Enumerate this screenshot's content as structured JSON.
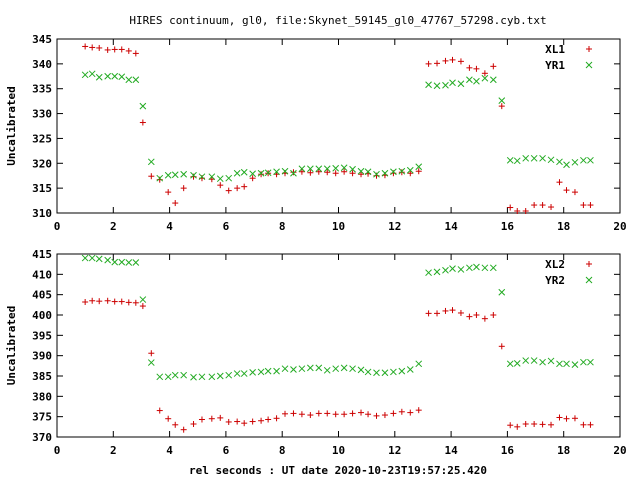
{
  "title": "HIRES continuum, gl0, file:Skynet_59145_gl0_47767_57298.cyb.txt",
  "xlabel": "rel seconds : UT date 2020-10-23T19:57:25.420",
  "colors": {
    "plus": "#cc0000",
    "cross": "#22aa22"
  },
  "chart_data": [
    {
      "type": "scatter",
      "ylabel": "Uncalibrated",
      "xlim": [
        0,
        20
      ],
      "ylim": [
        310,
        345
      ],
      "xticks": [
        0,
        2,
        4,
        6,
        8,
        10,
        12,
        14,
        16,
        18,
        20
      ],
      "yticks": [
        310,
        315,
        320,
        325,
        330,
        335,
        340,
        345
      ],
      "legend": "top-right",
      "series": [
        {
          "name": "XL1",
          "marker": "plus",
          "x": [
            1.0,
            1.25,
            1.5,
            1.8,
            2.05,
            2.3,
            2.55,
            2.8,
            3.05,
            3.35,
            3.65,
            3.95,
            4.2,
            4.5,
            4.85,
            5.15,
            5.5,
            5.8,
            6.1,
            6.4,
            6.65,
            6.95,
            7.25,
            7.5,
            7.8,
            8.1,
            8.4,
            8.7,
            9.0,
            9.3,
            9.6,
            9.9,
            10.2,
            10.5,
            10.8,
            11.05,
            11.35,
            11.65,
            11.95,
            12.25,
            12.55,
            12.85,
            13.2,
            13.5,
            13.8,
            14.05,
            14.35,
            14.65,
            14.9,
            15.2,
            15.5,
            15.8,
            16.1,
            16.35,
            16.65,
            16.95,
            17.25,
            17.55,
            17.85,
            18.1,
            18.4,
            18.7,
            18.95
          ],
          "y": [
            343.5,
            343.3,
            343.2,
            342.8,
            342.9,
            342.9,
            342.6,
            342.1,
            328.2,
            317.4,
            316.7,
            314.2,
            312.0,
            315.0,
            317.3,
            317.0,
            316.8,
            315.6,
            314.5,
            315.0,
            315.3,
            317.0,
            317.8,
            318.0,
            317.8,
            318.0,
            318.2,
            318.3,
            318.1,
            318.3,
            318.2,
            318.0,
            318.3,
            318.0,
            317.8,
            317.9,
            317.5,
            317.6,
            318.0,
            318.2,
            318.0,
            318.4,
            340.0,
            340.1,
            340.6,
            340.8,
            340.5,
            339.2,
            339.0,
            338.1,
            339.5,
            331.5,
            311.1,
            310.4,
            310.4,
            311.6,
            311.6,
            311.2,
            316.2,
            314.6,
            314.2,
            311.6,
            311.6
          ]
        },
        {
          "name": "YR1",
          "marker": "cross",
          "x": [
            1.0,
            1.25,
            1.5,
            1.8,
            2.05,
            2.3,
            2.55,
            2.8,
            3.05,
            3.35,
            3.65,
            3.95,
            4.2,
            4.5,
            4.85,
            5.15,
            5.5,
            5.8,
            6.1,
            6.4,
            6.65,
            6.95,
            7.25,
            7.5,
            7.8,
            8.1,
            8.4,
            8.7,
            9.0,
            9.3,
            9.6,
            9.9,
            10.2,
            10.5,
            10.8,
            11.05,
            11.35,
            11.65,
            11.95,
            12.25,
            12.55,
            12.85,
            13.2,
            13.5,
            13.8,
            14.05,
            14.35,
            14.65,
            14.9,
            15.2,
            15.5,
            15.8,
            16.1,
            16.35,
            16.65,
            16.95,
            17.25,
            17.55,
            17.85,
            18.1,
            18.4,
            18.7,
            18.95
          ],
          "y": [
            337.8,
            338.0,
            337.3,
            337.5,
            337.5,
            337.4,
            336.8,
            336.8,
            331.5,
            320.3,
            317.0,
            317.6,
            317.7,
            317.8,
            317.6,
            317.3,
            317.3,
            316.9,
            317.0,
            318.0,
            318.2,
            317.9,
            318.0,
            318.1,
            318.3,
            318.4,
            318.0,
            318.9,
            318.9,
            318.9,
            318.9,
            319.0,
            319.1,
            318.8,
            318.4,
            318.3,
            317.8,
            318.0,
            318.3,
            318.4,
            318.6,
            319.3,
            335.8,
            335.6,
            335.7,
            336.2,
            336.0,
            336.8,
            336.5,
            337.1,
            336.8,
            332.6,
            320.6,
            320.5,
            321.0,
            321.0,
            321.0,
            320.7,
            320.3,
            319.7,
            320.2,
            320.6,
            320.6
          ]
        }
      ]
    },
    {
      "type": "scatter",
      "ylabel": "Uncalibrated",
      "xlim": [
        0,
        20
      ],
      "ylim": [
        370,
        415
      ],
      "xticks": [
        0,
        2,
        4,
        6,
        8,
        10,
        12,
        14,
        16,
        18,
        20
      ],
      "yticks": [
        370,
        375,
        380,
        385,
        390,
        395,
        400,
        405,
        410,
        415
      ],
      "legend": "top-right",
      "series": [
        {
          "name": "XL2",
          "marker": "plus",
          "x": [
            1.0,
            1.25,
            1.5,
            1.8,
            2.05,
            2.3,
            2.55,
            2.8,
            3.05,
            3.35,
            3.65,
            3.95,
            4.2,
            4.5,
            4.85,
            5.15,
            5.5,
            5.8,
            6.1,
            6.4,
            6.65,
            6.95,
            7.25,
            7.5,
            7.8,
            8.1,
            8.4,
            8.7,
            9.0,
            9.3,
            9.6,
            9.9,
            10.2,
            10.5,
            10.8,
            11.05,
            11.35,
            11.65,
            11.95,
            12.25,
            12.55,
            12.85,
            13.2,
            13.5,
            13.8,
            14.05,
            14.35,
            14.65,
            14.9,
            15.2,
            15.5,
            15.8,
            16.1,
            16.35,
            16.65,
            16.95,
            17.25,
            17.55,
            17.85,
            18.1,
            18.4,
            18.7,
            18.95
          ],
          "y": [
            403.2,
            403.5,
            403.4,
            403.5,
            403.3,
            403.3,
            403.1,
            403.0,
            402.2,
            390.6,
            376.5,
            374.5,
            373.0,
            371.8,
            373.2,
            374.3,
            374.5,
            374.7,
            373.7,
            373.8,
            373.4,
            373.8,
            374.0,
            374.3,
            374.6,
            375.7,
            375.8,
            375.6,
            375.4,
            375.8,
            375.8,
            375.6,
            375.6,
            375.8,
            376.0,
            375.6,
            375.2,
            375.4,
            375.8,
            376.2,
            376.0,
            376.6,
            400.4,
            400.4,
            401.0,
            401.2,
            400.5,
            399.6,
            400.0,
            399.1,
            400.0,
            392.3,
            372.9,
            372.5,
            373.2,
            373.2,
            373.1,
            373.0,
            374.8,
            374.5,
            374.6,
            373.0,
            373.0
          ]
        },
        {
          "name": "YR2",
          "marker": "cross",
          "x": [
            1.0,
            1.25,
            1.5,
            1.8,
            2.05,
            2.3,
            2.55,
            2.8,
            3.05,
            3.35,
            3.65,
            3.95,
            4.2,
            4.5,
            4.85,
            5.15,
            5.5,
            5.8,
            6.1,
            6.4,
            6.65,
            6.95,
            7.25,
            7.5,
            7.8,
            8.1,
            8.4,
            8.7,
            9.0,
            9.3,
            9.6,
            9.9,
            10.2,
            10.5,
            10.8,
            11.05,
            11.35,
            11.65,
            11.95,
            12.25,
            12.55,
            12.85,
            13.2,
            13.5,
            13.8,
            14.05,
            14.35,
            14.65,
            14.9,
            15.2,
            15.5,
            15.8,
            16.1,
            16.35,
            16.65,
            16.95,
            17.25,
            17.55,
            17.85,
            18.1,
            18.4,
            18.7,
            18.95
          ],
          "y": [
            414.0,
            414.0,
            413.8,
            413.5,
            413.0,
            413.0,
            412.9,
            412.9,
            403.8,
            388.3,
            384.8,
            384.8,
            385.2,
            385.2,
            384.7,
            384.8,
            384.8,
            385.0,
            385.2,
            385.6,
            385.6,
            385.9,
            386.0,
            386.2,
            386.2,
            386.8,
            386.6,
            386.8,
            387.0,
            387.0,
            386.4,
            386.8,
            387.0,
            386.8,
            386.5,
            386.0,
            385.8,
            385.8,
            386.0,
            386.2,
            386.6,
            388.0,
            410.4,
            410.6,
            411.0,
            411.4,
            411.2,
            411.6,
            411.8,
            411.6,
            411.6,
            405.6,
            388.0,
            388.1,
            388.8,
            388.8,
            388.4,
            388.7,
            388.0,
            388.0,
            387.8,
            388.4,
            388.4
          ]
        }
      ]
    }
  ]
}
